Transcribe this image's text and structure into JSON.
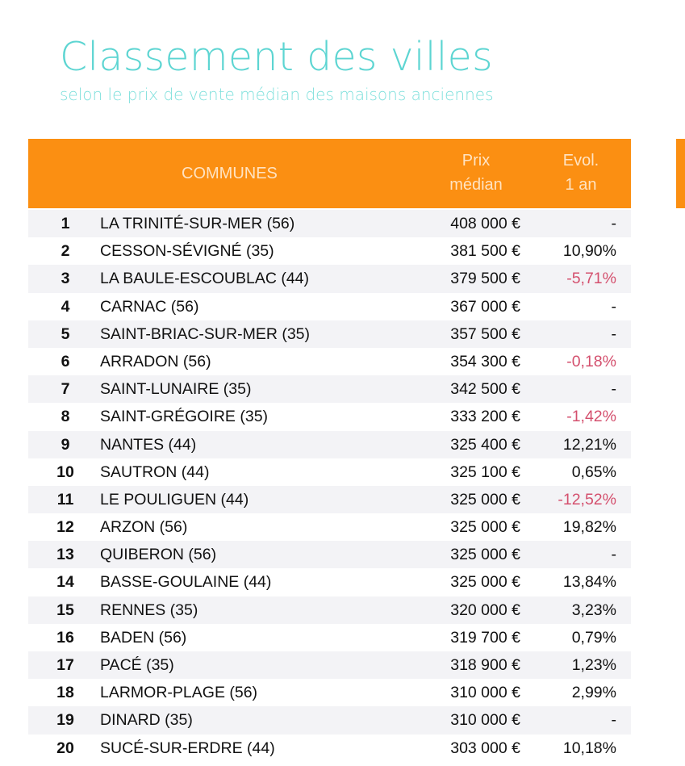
{
  "title": "Classement des villes",
  "subtitle": "selon le prix de vente médian des maisons anciennes",
  "header": {
    "communes": "COMMUNES",
    "prix_l1": "Prix",
    "prix_l2": "médian",
    "evol_l1": "Evol.",
    "evol_l2": "1 an"
  },
  "colors": {
    "header": "#fb8f12",
    "title": "#5dd5d2",
    "negative": "#d4506e"
  },
  "rows": [
    {
      "rank": "1",
      "name": "LA TRINITÉ-SUR-MER (56)",
      "price": "408 000 €",
      "evol": "-"
    },
    {
      "rank": "2",
      "name": "CESSON-SÉVIGNÉ (35)",
      "price": "381 500 €",
      "evol": "10,90%"
    },
    {
      "rank": "3",
      "name": "LA BAULE-ESCOUBLAC (44)",
      "price": "379 500 €",
      "evol": "-5,71%"
    },
    {
      "rank": "4",
      "name": "CARNAC (56)",
      "price": "367 000 €",
      "evol": "-"
    },
    {
      "rank": "5",
      "name": "SAINT-BRIAC-SUR-MER (35)",
      "price": "357 500 €",
      "evol": "-"
    },
    {
      "rank": "6",
      "name": "ARRADON (56)",
      "price": "354 300 €",
      "evol": "-0,18%"
    },
    {
      "rank": "7",
      "name": "SAINT-LUNAIRE (35)",
      "price": "342 500 €",
      "evol": "-"
    },
    {
      "rank": "8",
      "name": "SAINT-GRÉGOIRE (35)",
      "price": "333 200 €",
      "evol": "-1,42%"
    },
    {
      "rank": "9",
      "name": "NANTES (44)",
      "price": "325 400 €",
      "evol": "12,21%"
    },
    {
      "rank": "10",
      "name": "SAUTRON (44)",
      "price": "325 100 €",
      "evol": "0,65%"
    },
    {
      "rank": "11",
      "name": "LE POULIGUEN (44)",
      "price": "325 000 €",
      "evol": "-12,52%"
    },
    {
      "rank": "12",
      "name": "ARZON (56)",
      "price": "325 000 €",
      "evol": "19,82%"
    },
    {
      "rank": "13",
      "name": "QUIBERON (56)",
      "price": "325 000 €",
      "evol": "-"
    },
    {
      "rank": "14",
      "name": "BASSE-GOULAINE (44)",
      "price": "325 000 €",
      "evol": "13,84%"
    },
    {
      "rank": "15",
      "name": "RENNES (35)",
      "price": "320 000 €",
      "evol": "3,23%"
    },
    {
      "rank": "16",
      "name": "BADEN (56)",
      "price": "319 700 €",
      "evol": "0,79%"
    },
    {
      "rank": "17",
      "name": "PACÉ (35)",
      "price": "318 900 €",
      "evol": "1,23%"
    },
    {
      "rank": "18",
      "name": "LARMOR-PLAGE (56)",
      "price": "310 000 €",
      "evol": "2,99%"
    },
    {
      "rank": "19",
      "name": "DINARD (35)",
      "price": "310 000 €",
      "evol": "-"
    },
    {
      "rank": "20",
      "name": "SUCÉ-SUR-ERDRE (44)",
      "price": "303 000 €",
      "evol": "10,18%"
    }
  ]
}
